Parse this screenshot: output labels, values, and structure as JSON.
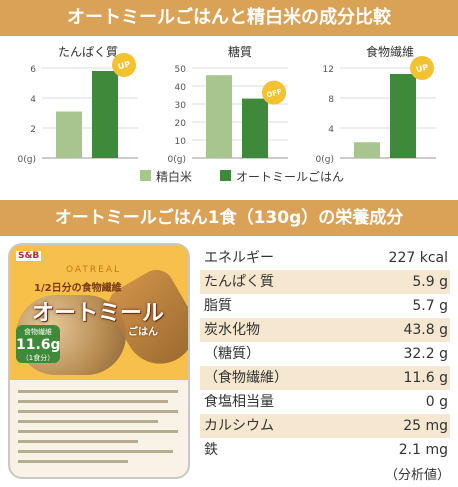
{
  "header": {
    "title": "オートミールごはんと精白米の成分比較"
  },
  "chart_data": [
    {
      "type": "bar",
      "title": "たんぱく質",
      "categories": [
        "精白米",
        "オートミールごはん"
      ],
      "values": [
        3.1,
        5.8
      ],
      "ylim": [
        0,
        6
      ],
      "yticks": [
        "0(g)",
        "2",
        "4",
        "6"
      ],
      "badge": "UP"
    },
    {
      "type": "bar",
      "title": "糖質",
      "categories": [
        "精白米",
        "オートミールごはん"
      ],
      "values": [
        46,
        33
      ],
      "ylim": [
        0,
        50
      ],
      "yticks": [
        "0(g)",
        "10",
        "20",
        "30",
        "40",
        "50"
      ],
      "badge": "OFF"
    },
    {
      "type": "bar",
      "title": "食物繊維",
      "categories": [
        "精白米",
        "オートミールごはん"
      ],
      "values": [
        2.1,
        11.2
      ],
      "ylim": [
        0,
        12
      ],
      "yticks": [
        "0(g)",
        "4",
        "8",
        "12"
      ],
      "badge": "UP"
    }
  ],
  "legend": [
    {
      "label": "精白米",
      "color": "#a9c58e"
    },
    {
      "label": "オートミールごはん",
      "color": "#3f8a3a"
    }
  ],
  "section2": {
    "title": "オートミールごはん1食（130g）の栄養成分"
  },
  "package": {
    "maker": "S&B",
    "oatreal": "OATREAL",
    "fiber_line": "1/2日分の食物繊維",
    "brand": "オートミール",
    "gohan": "ごはん",
    "badge_a": "食物繊維",
    "badge_b": "11.6g",
    "badge_c": "（1食分）"
  },
  "nutrition": [
    {
      "label": "エネルギー",
      "value": "227 kcal"
    },
    {
      "label": "たんぱく質",
      "value": "5.9 g"
    },
    {
      "label": "脂質",
      "value": "5.7 g"
    },
    {
      "label": "炭水化物",
      "value": "43.8 g"
    },
    {
      "label": "（糖質）",
      "value": "32.2 g"
    },
    {
      "label": "（食物繊維）",
      "value": "11.6 g"
    },
    {
      "label": "食塩相当量",
      "value": "0 g"
    },
    {
      "label": "カルシウム",
      "value": "25 mg"
    },
    {
      "label": "鉄",
      "value": "2.1 mg"
    }
  ],
  "footnote": "（分析値）",
  "colors": {
    "accent": "#d9a257",
    "rice": "#a9c58e",
    "oat": "#3f8a3a",
    "badge": "#f2c230"
  }
}
